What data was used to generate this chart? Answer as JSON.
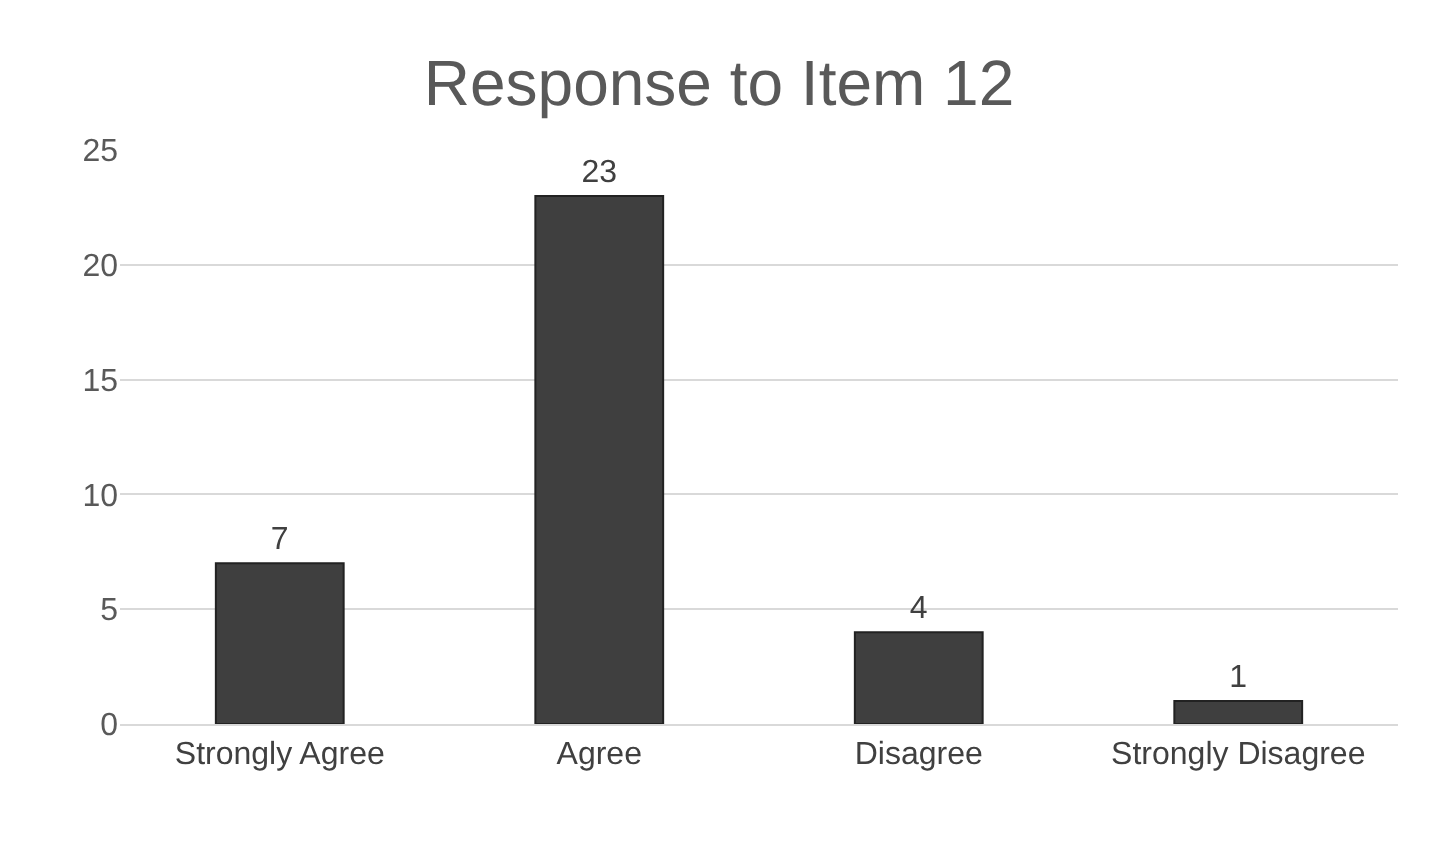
{
  "chart_data": {
    "type": "bar",
    "title": "Response to Item 12",
    "categories": [
      "Strongly Agree",
      "Agree",
      "Disagree",
      "Strongly Disagree"
    ],
    "values": [
      7,
      23,
      4,
      1
    ],
    "color": "#3f3f3f",
    "ylim": [
      0,
      25
    ],
    "yticks": [
      0,
      5,
      10,
      15,
      20,
      25
    ],
    "grid": "y",
    "data_labels": true,
    "legend": false
  }
}
